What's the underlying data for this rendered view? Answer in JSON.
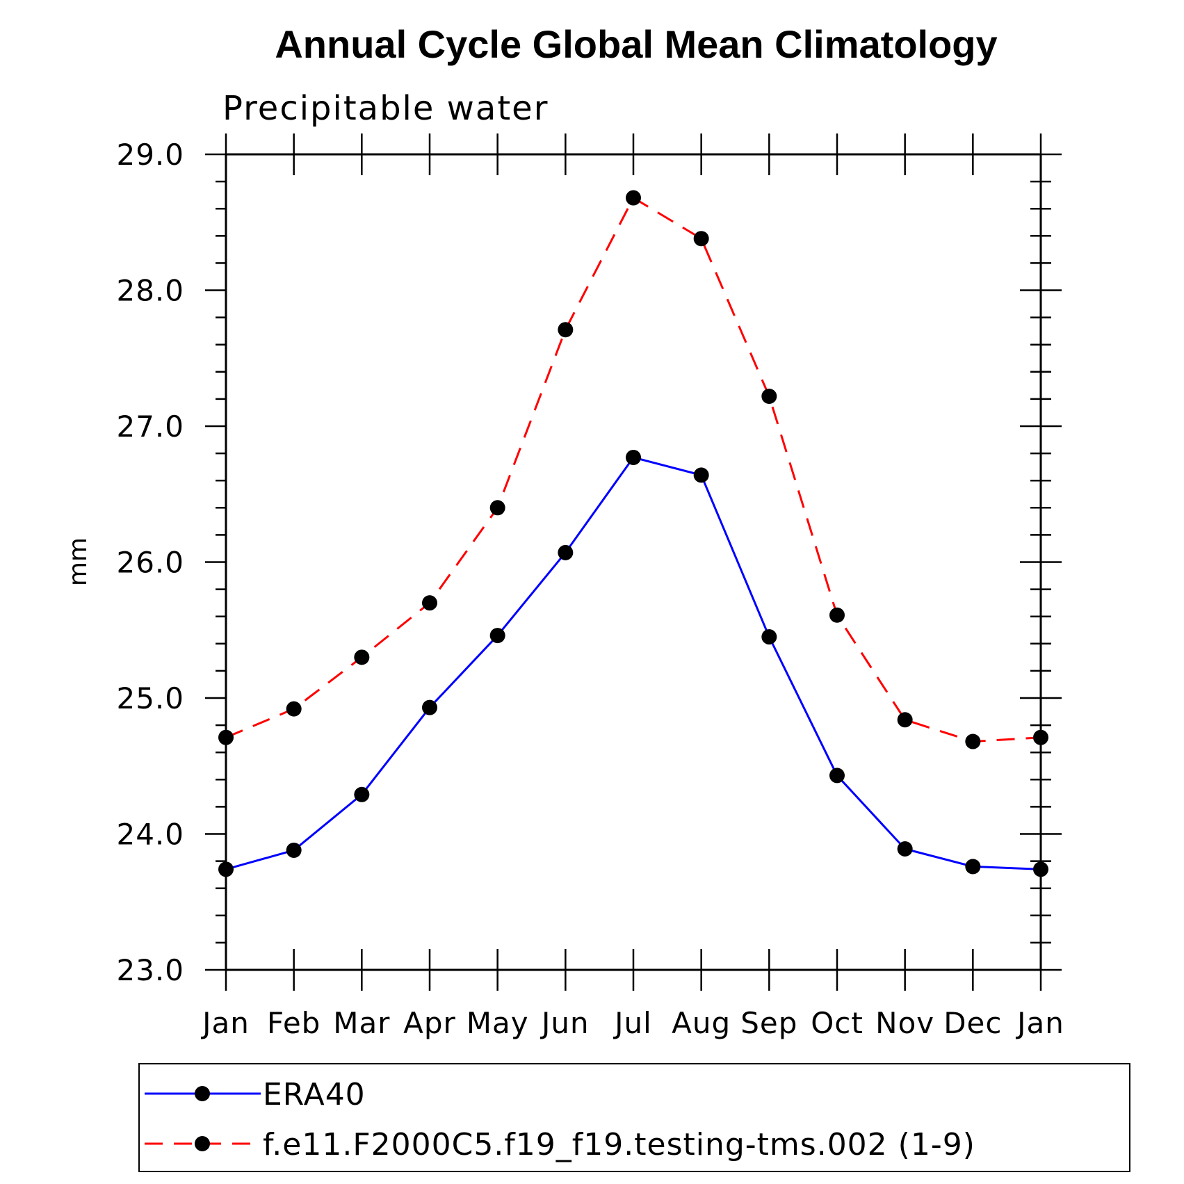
{
  "chart_data": {
    "type": "line",
    "title": "Annual Cycle Global Mean Climatology",
    "subtitle": "Precipitable water",
    "xlabel": "",
    "ylabel": "mm",
    "categories": [
      "Jan",
      "Feb",
      "Mar",
      "Apr",
      "May",
      "Jun",
      "Jul",
      "Aug",
      "Sep",
      "Oct",
      "Nov",
      "Dec",
      "Jan"
    ],
    "ylim": [
      23.0,
      29.0
    ],
    "y_ticks": [
      "23.0",
      "24.0",
      "25.0",
      "26.0",
      "27.0",
      "28.0",
      "29.0"
    ],
    "grid": false,
    "legend_position": "bottom",
    "series": [
      {
        "name": "ERA40",
        "color": "#0000ff",
        "line_style": "solid",
        "marker": "filled-circle",
        "values": [
          23.74,
          23.88,
          24.29,
          24.93,
          25.46,
          26.07,
          26.77,
          26.64,
          25.45,
          24.43,
          23.89,
          23.76,
          23.74
        ]
      },
      {
        "name": "f.e11.F2000C5.f19_f19.testing-tms.002 (1-9)",
        "color": "#ff0000",
        "line_style": "dashed",
        "marker": "filled-circle",
        "values": [
          24.71,
          24.92,
          25.3,
          25.7,
          26.4,
          27.71,
          28.68,
          28.38,
          27.22,
          25.61,
          24.84,
          24.68,
          24.71
        ]
      }
    ]
  }
}
